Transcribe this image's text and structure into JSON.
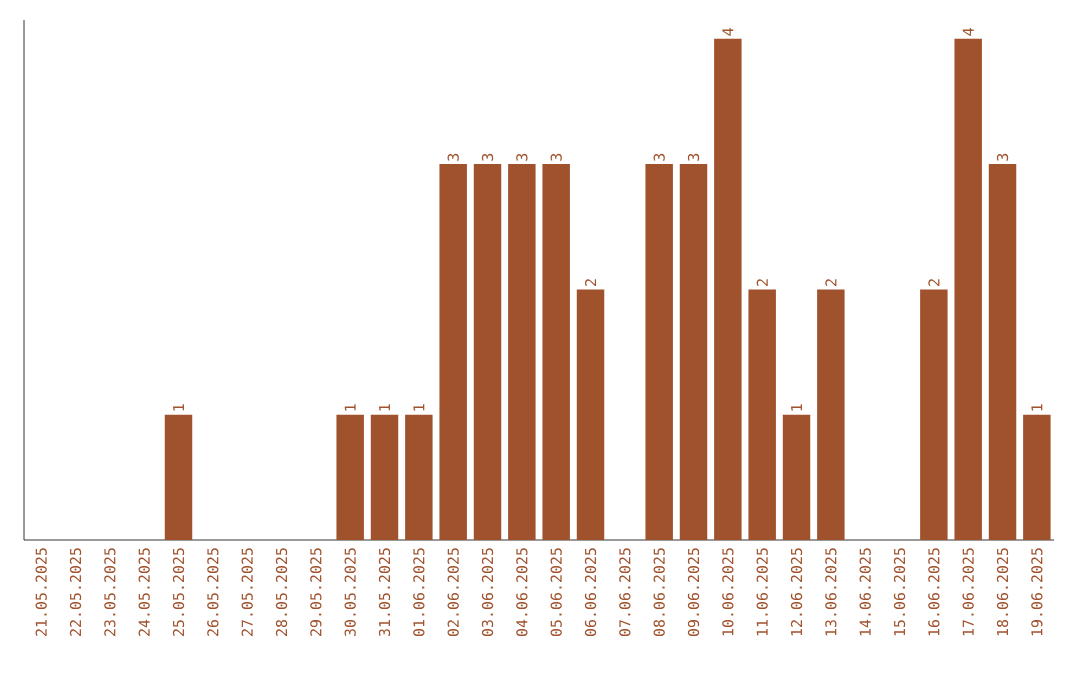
{
  "chart_data": {
    "type": "bar",
    "categories": [
      "21.05.2025",
      "22.05.2025",
      "23.05.2025",
      "24.05.2025",
      "25.05.2025",
      "26.05.2025",
      "27.05.2025",
      "28.05.2025",
      "29.05.2025",
      "30.05.2025",
      "31.05.2025",
      "01.06.2025",
      "02.06.2025",
      "03.06.2025",
      "04.06.2025",
      "05.06.2025",
      "06.06.2025",
      "07.06.2025",
      "08.06.2025",
      "09.06.2025",
      "10.06.2025",
      "11.06.2025",
      "12.06.2025",
      "13.06.2025",
      "14.06.2025",
      "15.06.2025",
      "16.06.2025",
      "17.06.2025",
      "18.06.2025",
      "19.06.2025"
    ],
    "values": [
      0,
      0,
      0,
      0,
      1,
      0,
      0,
      0,
      0,
      1,
      1,
      1,
      3,
      3,
      3,
      3,
      2,
      0,
      3,
      3,
      4,
      2,
      1,
      2,
      0,
      0,
      2,
      4,
      3,
      1
    ],
    "value_labels": [
      null,
      null,
      null,
      null,
      "1",
      null,
      null,
      null,
      null,
      "1",
      "1",
      "1",
      "3",
      "3",
      "3",
      "3",
      "2",
      null,
      "3",
      "3",
      "4",
      "2",
      "1",
      "2",
      null,
      null,
      "2",
      "4",
      "3",
      "1"
    ],
    "color": "#a0522d",
    "ylim": [
      0,
      4.15
    ],
    "tick_labels": "x",
    "grid": false
  }
}
